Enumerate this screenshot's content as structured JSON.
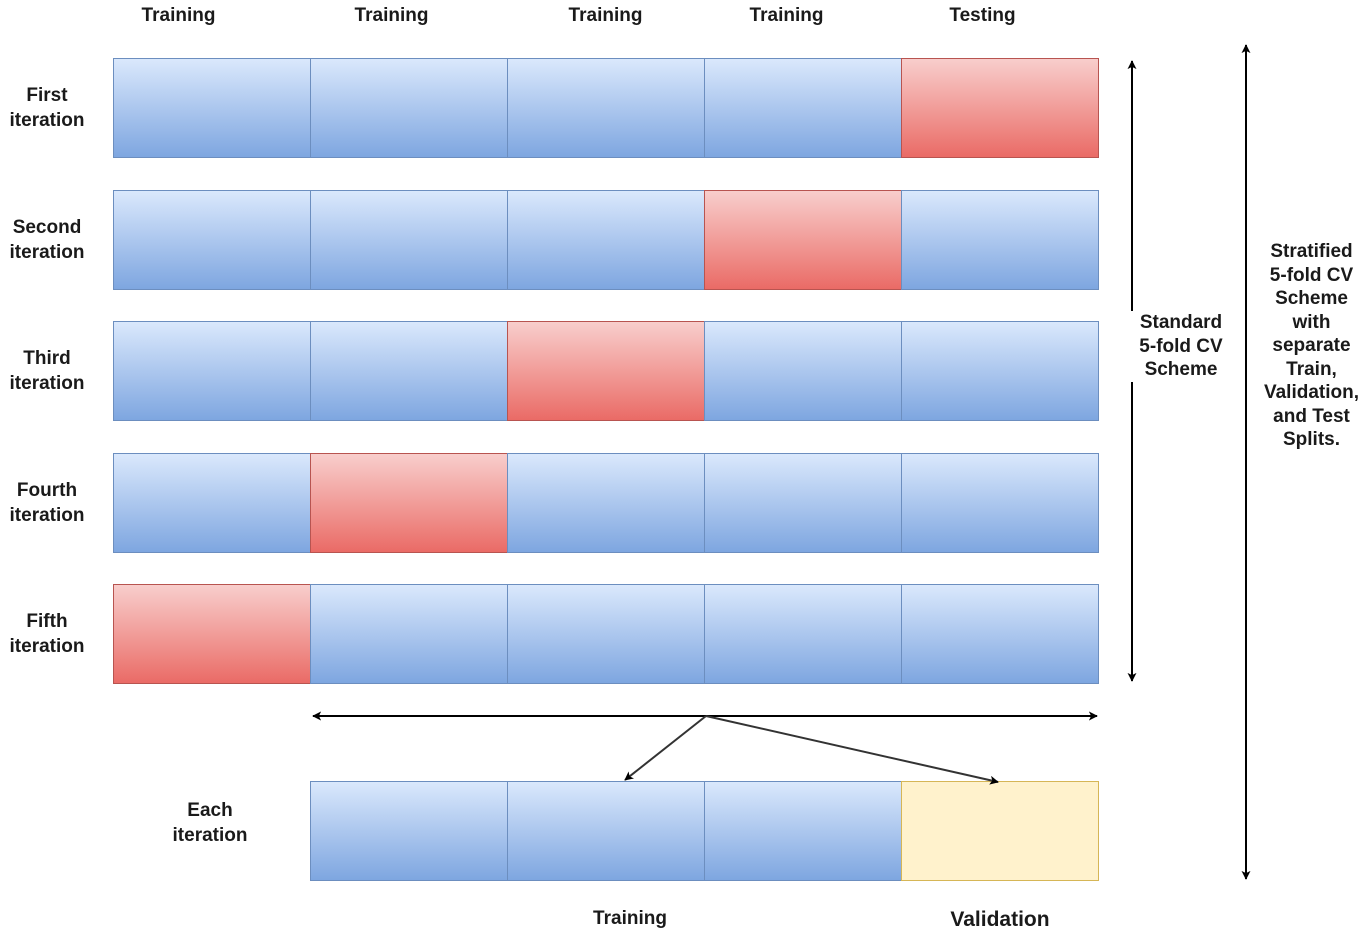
{
  "column_headers": [
    "Training",
    "Training",
    "Training",
    "Training",
    "Testing"
  ],
  "iterations": [
    {
      "label_line1": "First",
      "label_line2": "iteration",
      "test_fold": 5
    },
    {
      "label_line1": "Second",
      "label_line2": "iteration",
      "test_fold": 4
    },
    {
      "label_line1": "Third",
      "label_line2": "iteration",
      "test_fold": 3
    },
    {
      "label_line1": "Fourth",
      "label_line2": "iteration",
      "test_fold": 2
    },
    {
      "label_line1": "Fifth",
      "label_line2": "iteration",
      "test_fold": 1
    }
  ],
  "each_iteration": {
    "label_line1": "Each",
    "label_line2": "iteration",
    "training_label": "Training",
    "validation_label": "Validation",
    "fold_types": [
      "train",
      "train",
      "train",
      "validation"
    ]
  },
  "standard_scheme": {
    "line1": "Standard",
    "line2": "5-fold CV",
    "line3": "Scheme"
  },
  "stratified_scheme": {
    "line1": "Stratified",
    "line2": "5-fold CV",
    "line3": "Scheme",
    "line4": "with",
    "line5": "separate",
    "line6": "Train,",
    "line7": "Validation,",
    "line8": "and Test",
    "line9": "Splits."
  },
  "colors": {
    "train_fill_top": "#dae8fc",
    "train_fill_bottom": "#7ea6e0",
    "train_stroke": "#6c8ebf",
    "test_fill_top": "#f8cecc",
    "test_fill_bottom": "#ea6b66",
    "test_stroke": "#b85450",
    "validation_fill": "#fff2cc",
    "validation_stroke": "#d6b656"
  }
}
